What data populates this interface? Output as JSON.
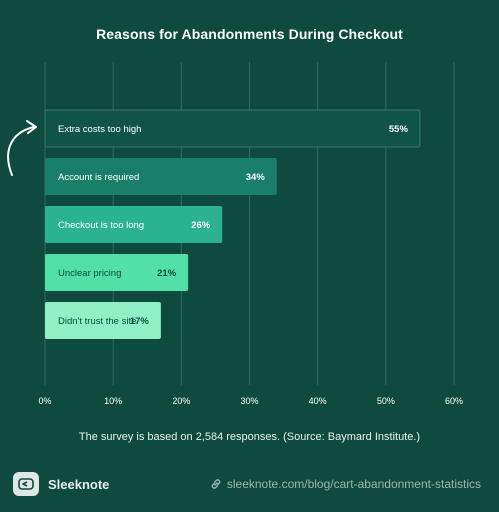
{
  "chart_data": {
    "type": "bar",
    "orientation": "horizontal",
    "title": "Reasons for Abandonments During Checkout",
    "categories": [
      "Extra costs too high",
      "Account is required",
      "Checkout is too long",
      "Unclear pricing",
      "Didn't trust the site"
    ],
    "values": [
      55,
      34,
      26,
      21,
      17
    ],
    "value_labels": [
      "55%",
      "34%",
      "26%",
      "21%",
      "17%"
    ],
    "xlim": [
      0,
      60
    ],
    "xticks": [
      0,
      10,
      20,
      30,
      40,
      50,
      60
    ],
    "xtick_labels": [
      "0%",
      "10%",
      "20%",
      "30%",
      "40%",
      "50%",
      "60%"
    ],
    "grid": "vertical",
    "bar_colors": [
      "#0f5447",
      "#1a7f69",
      "#2bb38f",
      "#52dfa8",
      "#8ef0c4"
    ],
    "label_colors": [
      "#ffffff",
      "#ffffff",
      "#ffffff",
      "#0f4a3f",
      "#0f4a3f"
    ]
  },
  "footnote": "The survey is based on 2,584 responses. (Source: Baymard Institute.)",
  "brand": {
    "name": "Sleeknote",
    "logo_icon": "sleeknote-logo-icon"
  },
  "source_url": "sleeknote.com/blog/cart-abandonment-statistics",
  "colors": {
    "background": "#0f4a3f",
    "grid": "#2f6a5e"
  }
}
